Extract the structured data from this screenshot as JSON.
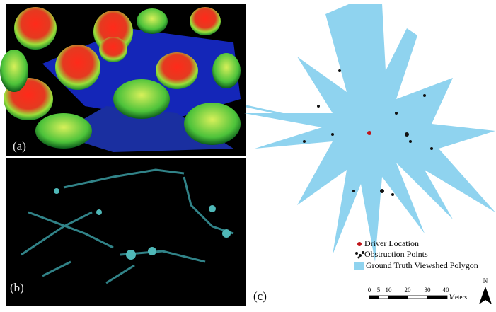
{
  "panels": {
    "a": {
      "label": "(a)"
    },
    "b": {
      "label": "(b)"
    },
    "c": {
      "label": "(c)"
    }
  },
  "legend": {
    "items": [
      {
        "label": "Driver Location"
      },
      {
        "label": "Obstruction Points"
      },
      {
        "label": "Ground Truth Viewshed Polygon"
      }
    ]
  },
  "scale_bar": {
    "ticks": [
      0,
      5,
      10,
      20,
      30,
      40
    ],
    "unit": "Meters"
  },
  "north_arrow": {
    "label": "N"
  }
}
